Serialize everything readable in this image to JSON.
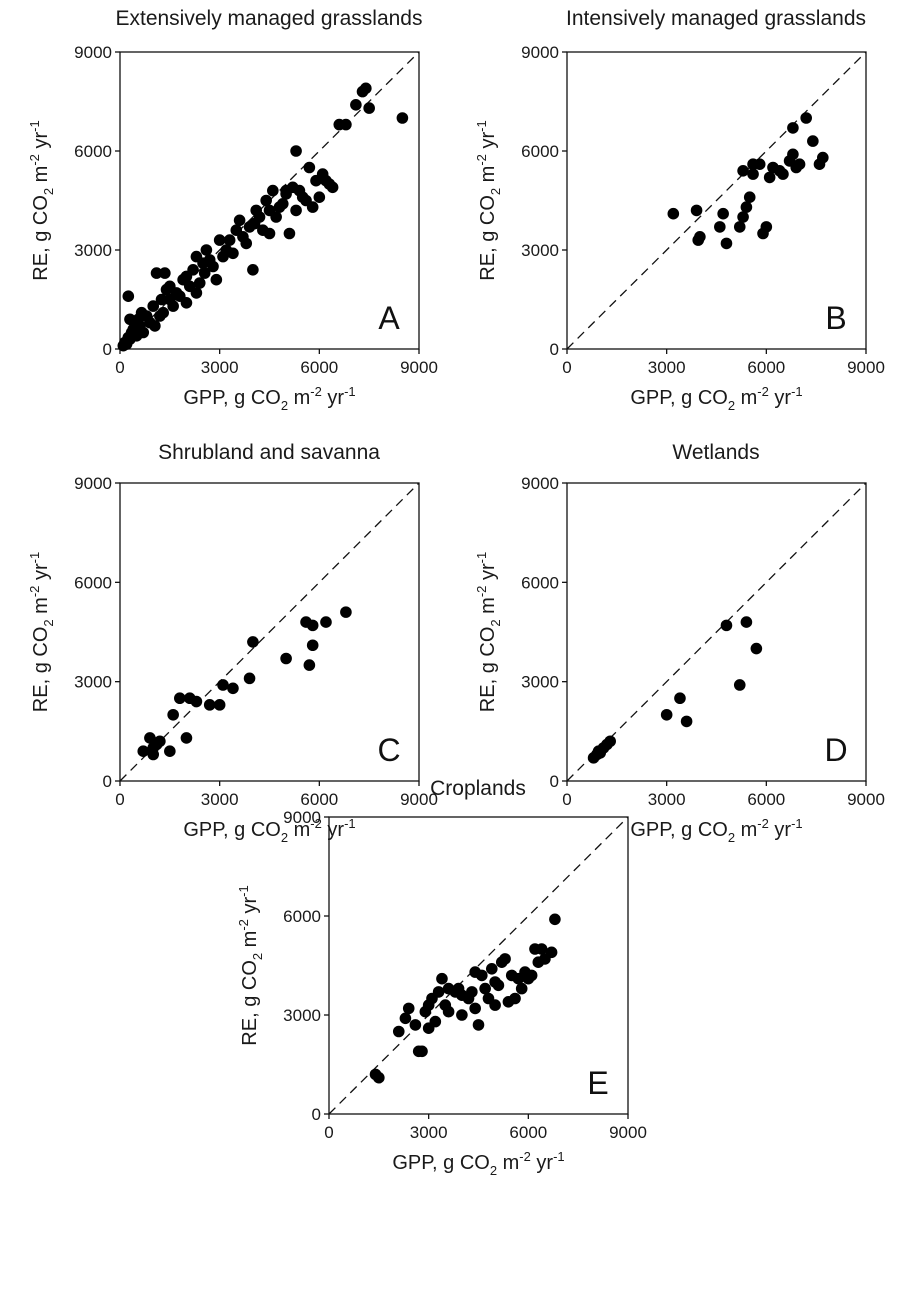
{
  "chart_data": [
    {
      "panel": "A",
      "type": "scatter",
      "title": "Extensively managed grasslands",
      "xlabel": {
        "main": "GPP, g CO",
        "sub": "2",
        "mid": " m",
        "sup1": "-2",
        "end": " yr",
        "sup2": "-1"
      },
      "ylabel": {
        "main": "RE, g CO",
        "sub": "2",
        "mid": " m",
        "sup1": "-2",
        "end": " yr",
        "sup2": "-1"
      },
      "xlim": [
        0,
        9000
      ],
      "ylim": [
        0,
        9000
      ],
      "xticks": [
        "0",
        "3000",
        "6000",
        "9000"
      ],
      "yticks": [
        "0",
        "3000",
        "6000",
        "9000"
      ],
      "reference_line": "1:1",
      "points": [
        [
          100,
          100
        ],
        [
          150,
          200
        ],
        [
          200,
          150
        ],
        [
          250,
          350
        ],
        [
          300,
          300
        ],
        [
          350,
          500
        ],
        [
          300,
          900
        ],
        [
          250,
          1600
        ],
        [
          400,
          600
        ],
        [
          450,
          800
        ],
        [
          500,
          400
        ],
        [
          550,
          900
        ],
        [
          600,
          700
        ],
        [
          650,
          1100
        ],
        [
          700,
          500
        ],
        [
          800,
          1000
        ],
        [
          900,
          800
        ],
        [
          1000,
          1300
        ],
        [
          1050,
          700
        ],
        [
          1100,
          2300
        ],
        [
          1200,
          1000
        ],
        [
          1250,
          1500
        ],
        [
          1300,
          1100
        ],
        [
          1350,
          2300
        ],
        [
          1400,
          1800
        ],
        [
          1500,
          1500
        ],
        [
          1600,
          1300
        ],
        [
          1700,
          1700
        ],
        [
          1800,
          1600
        ],
        [
          1900,
          2100
        ],
        [
          2000,
          1400
        ],
        [
          2100,
          1900
        ],
        [
          2200,
          2400
        ],
        [
          2300,
          1700
        ],
        [
          2400,
          2000
        ],
        [
          2500,
          2600
        ],
        [
          2550,
          2300
        ],
        [
          2600,
          3000
        ],
        [
          2700,
          2700
        ],
        [
          2800,
          2500
        ],
        [
          2900,
          2100
        ],
        [
          3000,
          3300
        ],
        [
          3100,
          2800
        ],
        [
          3200,
          3000
        ],
        [
          3300,
          3300
        ],
        [
          3400,
          2900
        ],
        [
          3500,
          3600
        ],
        [
          3600,
          3900
        ],
        [
          3700,
          3400
        ],
        [
          3800,
          3200
        ],
        [
          3900,
          3700
        ],
        [
          4000,
          2400
        ],
        [
          4050,
          3800
        ],
        [
          4100,
          4200
        ],
        [
          4200,
          4000
        ],
        [
          4300,
          3600
        ],
        [
          4400,
          4500
        ],
        [
          4500,
          4200
        ],
        [
          4600,
          4800
        ],
        [
          4700,
          4000
        ],
        [
          4800,
          4300
        ],
        [
          4900,
          4400
        ],
        [
          5000,
          4700
        ],
        [
          5100,
          3500
        ],
        [
          5200,
          4900
        ],
        [
          5300,
          6000
        ],
        [
          5300,
          4200
        ],
        [
          5400,
          4800
        ],
        [
          5500,
          4600
        ],
        [
          5600,
          4500
        ],
        [
          5700,
          5500
        ],
        [
          5800,
          4300
        ],
        [
          5900,
          5100
        ],
        [
          6000,
          4600
        ],
        [
          6100,
          5300
        ],
        [
          6200,
          5100
        ],
        [
          6300,
          5000
        ],
        [
          6400,
          4900
        ],
        [
          6600,
          6800
        ],
        [
          6800,
          6800
        ],
        [
          7100,
          7400
        ],
        [
          7300,
          7800
        ],
        [
          7400,
          7900
        ],
        [
          7500,
          7300
        ],
        [
          8500,
          7000
        ],
        [
          1500,
          1900
        ],
        [
          2000,
          2200
        ],
        [
          2300,
          2800
        ],
        [
          4500,
          3500
        ],
        [
          5000,
          4800
        ]
      ],
      "label": "A"
    },
    {
      "panel": "B",
      "type": "scatter",
      "title": "Intensively managed grasslands",
      "xlabel": {
        "main": "GPP, g CO",
        "sub": "2",
        "mid": " m",
        "sup1": "-2",
        "end": " yr",
        "sup2": "-1"
      },
      "ylabel": {
        "main": "RE, g CO",
        "sub": "2",
        "mid": " m",
        "sup1": "-2",
        "end": " yr",
        "sup2": "-1"
      },
      "xlim": [
        0,
        9000
      ],
      "ylim": [
        0,
        9000
      ],
      "xticks": [
        "0",
        "3000",
        "6000",
        "9000"
      ],
      "yticks": [
        "0",
        "3000",
        "6000",
        "9000"
      ],
      "reference_line": "1:1",
      "points": [
        [
          3200,
          4100
        ],
        [
          3900,
          4200
        ],
        [
          3950,
          3300
        ],
        [
          4000,
          3400
        ],
        [
          4600,
          3700
        ],
        [
          4700,
          4100
        ],
        [
          4800,
          3200
        ],
        [
          5200,
          3700
        ],
        [
          5300,
          4000
        ],
        [
          5300,
          5400
        ],
        [
          5400,
          4300
        ],
        [
          5500,
          4600
        ],
        [
          5600,
          5300
        ],
        [
          5800,
          5600
        ],
        [
          5900,
          3500
        ],
        [
          6000,
          3700
        ],
        [
          6100,
          5200
        ],
        [
          6200,
          5500
        ],
        [
          6400,
          5400
        ],
        [
          6500,
          5300
        ],
        [
          6700,
          5700
        ],
        [
          6800,
          5900
        ],
        [
          6800,
          6700
        ],
        [
          6900,
          5500
        ],
        [
          7000,
          5600
        ],
        [
          7200,
          7000
        ],
        [
          7400,
          6300
        ],
        [
          7600,
          5600
        ],
        [
          7700,
          5800
        ],
        [
          5600,
          5600
        ]
      ],
      "label": "B"
    },
    {
      "panel": "C",
      "type": "scatter",
      "title": "Shrubland and savanna",
      "xlabel": {
        "main": "GPP, g CO",
        "sub": "2",
        "mid": " m",
        "sup1": "-2",
        "end": " yr",
        "sup2": "-1"
      },
      "ylabel": {
        "main": "RE, g CO",
        "sub": "2",
        "mid": " m",
        "sup1": "-2",
        "end": " yr",
        "sup2": "-1"
      },
      "xlim": [
        0,
        9000
      ],
      "ylim": [
        0,
        9000
      ],
      "xticks": [
        "0",
        "3000",
        "6000",
        "9000"
      ],
      "yticks": [
        "0",
        "3000",
        "6000",
        "9000"
      ],
      "reference_line": "1:1",
      "points": [
        [
          700,
          900
        ],
        [
          900,
          1300
        ],
        [
          1000,
          800
        ],
        [
          1100,
          1100
        ],
        [
          1200,
          1200
        ],
        [
          1500,
          900
        ],
        [
          1600,
          2000
        ],
        [
          1800,
          2500
        ],
        [
          2000,
          1300
        ],
        [
          2100,
          2500
        ],
        [
          2300,
          2400
        ],
        [
          2700,
          2300
        ],
        [
          3000,
          2300
        ],
        [
          3100,
          2900
        ],
        [
          3400,
          2800
        ],
        [
          3900,
          3100
        ],
        [
          4000,
          4200
        ],
        [
          5000,
          3700
        ],
        [
          5600,
          4800
        ],
        [
          5700,
          3500
        ],
        [
          5800,
          4700
        ],
        [
          5800,
          4100
        ],
        [
          6200,
          4800
        ],
        [
          6800,
          5100
        ],
        [
          1000,
          1000
        ]
      ],
      "label": "C"
    },
    {
      "panel": "D",
      "type": "scatter",
      "title": "Wetlands",
      "xlabel": {
        "main": "GPP, g CO",
        "sub": "2",
        "mid": " m",
        "sup1": "-2",
        "end": " yr",
        "sup2": "-1"
      },
      "ylabel": {
        "main": "RE, g CO",
        "sub": "2",
        "mid": " m",
        "sup1": "-2",
        "end": " yr",
        "sup2": "-1"
      },
      "xlim": [
        0,
        9000
      ],
      "ylim": [
        0,
        9000
      ],
      "xticks": [
        "0",
        "3000",
        "6000",
        "9000"
      ],
      "yticks": [
        "0",
        "3000",
        "6000",
        "9000"
      ],
      "reference_line": "1:1",
      "points": [
        [
          800,
          700
        ],
        [
          900,
          800
        ],
        [
          950,
          900
        ],
        [
          1000,
          850
        ],
        [
          1100,
          1000
        ],
        [
          1200,
          1100
        ],
        [
          1300,
          1200
        ],
        [
          3000,
          2000
        ],
        [
          3400,
          2500
        ],
        [
          3600,
          1800
        ],
        [
          4800,
          4700
        ],
        [
          5200,
          2900
        ],
        [
          5400,
          4800
        ],
        [
          5700,
          4000
        ]
      ],
      "label": "D"
    },
    {
      "panel": "E",
      "type": "scatter",
      "title": "Croplands",
      "xlabel": {
        "main": "GPP, g CO",
        "sub": "2",
        "mid": " m",
        "sup1": "-2",
        "end": " yr",
        "sup2": "-1"
      },
      "ylabel": {
        "main": "RE, g CO",
        "sub": "2",
        "mid": " m",
        "sup1": "-2",
        "end": " yr",
        "sup2": "-1"
      },
      "xlim": [
        0,
        9000
      ],
      "ylim": [
        0,
        9000
      ],
      "xticks": [
        "0",
        "3000",
        "6000",
        "9000"
      ],
      "yticks": [
        "0",
        "3000",
        "6000",
        "9000"
      ],
      "reference_line": "1:1",
      "points": [
        [
          1400,
          1200
        ],
        [
          1500,
          1100
        ],
        [
          2100,
          2500
        ],
        [
          2300,
          2900
        ],
        [
          2400,
          3200
        ],
        [
          2700,
          1900
        ],
        [
          2800,
          1900
        ],
        [
          2900,
          3100
        ],
        [
          3000,
          2600
        ],
        [
          3100,
          3500
        ],
        [
          3200,
          2800
        ],
        [
          3300,
          3700
        ],
        [
          3400,
          4100
        ],
        [
          3500,
          3300
        ],
        [
          3600,
          3100
        ],
        [
          3800,
          3700
        ],
        [
          3900,
          3800
        ],
        [
          4000,
          3600
        ],
        [
          4200,
          3500
        ],
        [
          4300,
          3700
        ],
        [
          4400,
          3200
        ],
        [
          4500,
          2700
        ],
        [
          4600,
          4200
        ],
        [
          4700,
          3800
        ],
        [
          4800,
          3500
        ],
        [
          4900,
          4400
        ],
        [
          5000,
          4000
        ],
        [
          5100,
          3900
        ],
        [
          5200,
          4600
        ],
        [
          5300,
          4700
        ],
        [
          5400,
          3400
        ],
        [
          5500,
          4200
        ],
        [
          5600,
          3500
        ],
        [
          5700,
          4100
        ],
        [
          5800,
          3800
        ],
        [
          5900,
          4300
        ],
        [
          6000,
          4100
        ],
        [
          6100,
          4200
        ],
        [
          6200,
          5000
        ],
        [
          6300,
          4600
        ],
        [
          6400,
          5000
        ],
        [
          6500,
          4700
        ],
        [
          6700,
          4900
        ],
        [
          6800,
          5900
        ],
        [
          3000,
          3300
        ],
        [
          4000,
          3000
        ],
        [
          5000,
          3300
        ],
        [
          2600,
          2700
        ],
        [
          3600,
          3800
        ],
        [
          4400,
          4300
        ]
      ],
      "label": "E"
    }
  ]
}
